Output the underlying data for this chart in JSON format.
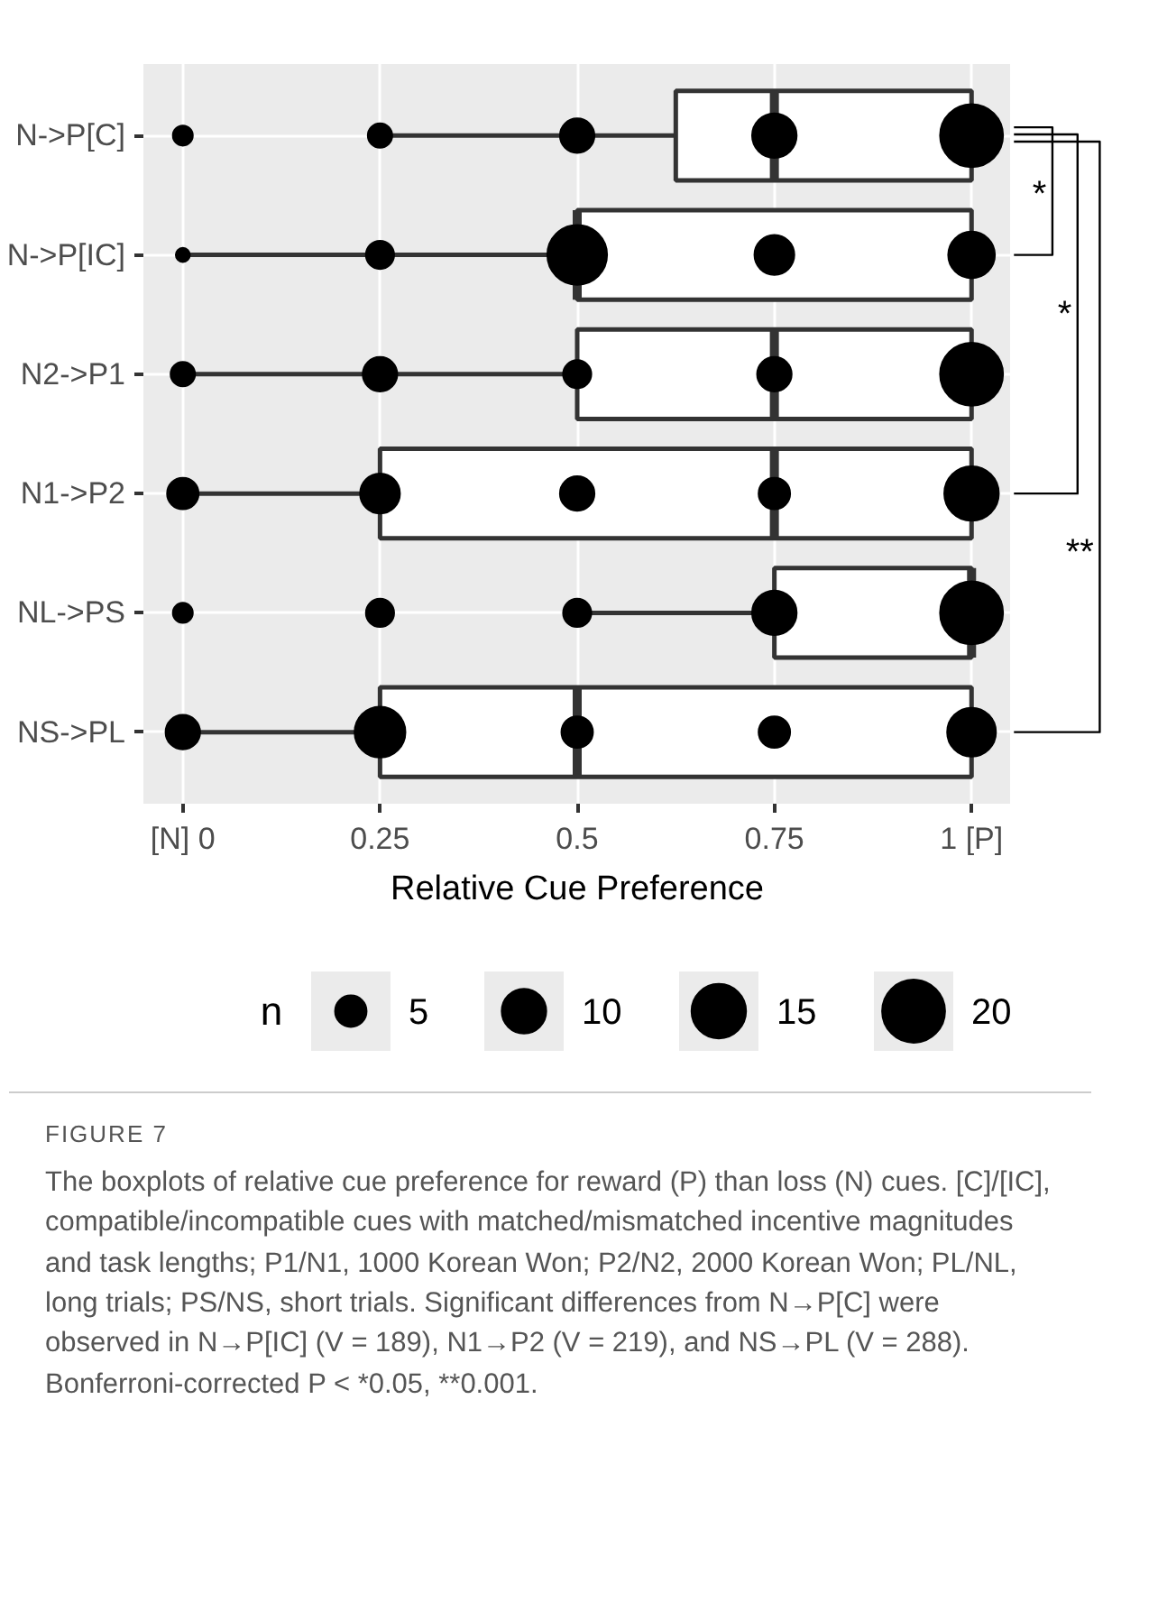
{
  "chart_data": {
    "type": "box",
    "orientation": "horizontal",
    "categories": [
      "N->P[C]",
      "N->P[IC]",
      "N2->P1",
      "N1->P2",
      "NL->PS",
      "NS->PL"
    ],
    "boxes": [
      {
        "low": 0.25,
        "q1": 0.625,
        "median": 0.75,
        "q3": 1,
        "high": 1
      },
      {
        "low": 0,
        "q1": 0.5,
        "median": 0.5,
        "q3": 1,
        "high": 1
      },
      {
        "low": 0,
        "q1": 0.5,
        "median": 0.75,
        "q3": 1,
        "high": 1
      },
      {
        "low": 0,
        "q1": 0.25,
        "median": 0.75,
        "q3": 1,
        "high": 1
      },
      {
        "low": 0.5,
        "q1": 0.75,
        "median": 1,
        "q3": 1,
        "high": 1
      },
      {
        "low": 0,
        "q1": 0.25,
        "median": 0.5,
        "q3": 1,
        "high": 1
      }
    ],
    "series": [
      {
        "type": "bubble",
        "color": "#000000",
        "x": [
          "N->P[C]",
          "N->P[C]",
          "N->P[C]",
          "N->P[C]",
          "N->P[C]",
          "N->P[IC]",
          "N->P[IC]",
          "N->P[IC]",
          "N->P[IC]",
          "N->P[IC]",
          "N2->P1",
          "N2->P1",
          "N2->P1",
          "N2->P1",
          "N2->P1",
          "N1->P2",
          "N1->P2",
          "N1->P2",
          "N1->P2",
          "N1->P2",
          "NL->PS",
          "NL->PS",
          "NL->PS",
          "NL->PS",
          "NL->PS",
          "NS->PL",
          "NS->PL",
          "NS->PL",
          "NS->PL",
          "NS->PL"
        ],
        "values": [
          0,
          0.25,
          0.5,
          0.75,
          1,
          0,
          0.25,
          0.5,
          0.75,
          1,
          0,
          0.25,
          0.5,
          0.75,
          1,
          0,
          0.25,
          0.5,
          0.75,
          1,
          0,
          0.25,
          0.5,
          0.75,
          1,
          0,
          0.25,
          0.5,
          0.75,
          1
        ],
        "sizes": [
          2,
          3,
          6,
          10,
          20,
          1,
          4,
          18,
          8,
          11,
          3,
          6,
          4,
          6,
          20,
          5,
          8,
          6,
          5,
          15,
          2,
          4,
          4,
          10,
          20,
          6,
          13,
          5,
          5,
          12
        ]
      }
    ],
    "size_legend": [
      5,
      10,
      15,
      20
    ],
    "legend_title": "n",
    "xlabel": "Relative Cue Preference",
    "xlim": [
      -0.05,
      1.05
    ],
    "xticks": [
      {
        "value": 0,
        "label": "[N] 0"
      },
      0.25,
      0.5,
      0.75,
      {
        "value": 1,
        "label": "1 [P]"
      }
    ],
    "grid": true,
    "annotations": [
      "*",
      "*",
      "**",
      "FIGURE 7",
      "The boxplots of relative cue preference for reward (P) than loss (N) cues. [C]/[IC], compatible/incompatible cues with matched/mismatched incentive magnitudes and task lengths; P1/N1, 1000 Korean Won; P2/N2, 2000 Korean Won; PL/NL, long trials; PS/NS, short trials. Significant differences from N→P[C] were observed in N→P[IC] (V = 189), N1→P2 (V = 219), and NS→PL (V = 288). Bonferroni-corrected P < *0.05, **0.001."
    ]
  }
}
